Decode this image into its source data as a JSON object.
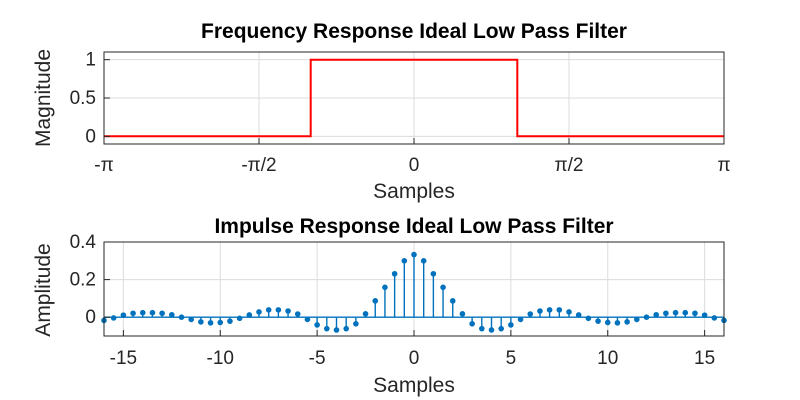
{
  "chart_data": [
    {
      "type": "line",
      "title": "Frequency Response Ideal Low Pass Filter",
      "xlabel": "Samples",
      "ylabel": "Magnitude",
      "xlim": [
        -3.14159,
        3.14159
      ],
      "ylim": [
        -0.1,
        1.1
      ],
      "grid": true,
      "color": "#ff0000",
      "x_ticks": [
        {
          "value": -3.14159,
          "label": "-π"
        },
        {
          "value": -1.5708,
          "label": "-π/2"
        },
        {
          "value": 0,
          "label": "0"
        },
        {
          "value": 1.5708,
          "label": "π/2"
        },
        {
          "value": 3.14159,
          "label": "π"
        }
      ],
      "y_ticks": [
        {
          "value": 0,
          "label": "0"
        },
        {
          "value": 0.5,
          "label": "0.5"
        },
        {
          "value": 1,
          "label": "1"
        }
      ],
      "series": [
        {
          "x": [
            -3.14159,
            -1.0472,
            -1.0472,
            1.0472,
            1.0472,
            3.14159
          ],
          "y": [
            0,
            0,
            1,
            1,
            0,
            0
          ]
        }
      ]
    },
    {
      "type": "scatter",
      "style": "stem",
      "title": "Impulse Response Ideal Low Pass Filter",
      "xlabel": "Samples",
      "ylabel": "Amplitude",
      "xlim": [
        -16,
        16
      ],
      "ylim": [
        -0.1,
        0.4
      ],
      "grid": true,
      "color": "#0072bd",
      "x_ticks": [
        {
          "value": -15,
          "label": "-15"
        },
        {
          "value": -10,
          "label": "-10"
        },
        {
          "value": -5,
          "label": "-5"
        },
        {
          "value": 0,
          "label": "0"
        },
        {
          "value": 5,
          "label": "5"
        },
        {
          "value": 10,
          "label": "10"
        },
        {
          "value": 15,
          "label": "15"
        }
      ],
      "y_ticks": [
        {
          "value": 0,
          "label": "0"
        },
        {
          "value": 0.2,
          "label": "0.2"
        },
        {
          "value": 0.4,
          "label": "0.4"
        }
      ],
      "series": [
        {
          "x": [
            -16,
            -15.5,
            -15,
            -14.5,
            -14,
            -13.5,
            -13,
            -12.5,
            -12,
            -11.5,
            -11,
            -10.5,
            -10,
            -9.5,
            -9,
            -8.5,
            -8,
            -7.5,
            -7,
            -6.5,
            -6,
            -5.5,
            -5,
            -4.5,
            -4,
            -3.5,
            -3,
            -2.5,
            -2,
            -1.5,
            -1,
            -0.5,
            0,
            0.5,
            1,
            1.5,
            2,
            2.5,
            3,
            3.5,
            4,
            4.5,
            5,
            5.5,
            6,
            6.5,
            7,
            7.5,
            8,
            8.5,
            9,
            9.5,
            10,
            10.5,
            11,
            11.5,
            12,
            12.5,
            13,
            13.5,
            14,
            14.5,
            15,
            15.5,
            16
          ],
          "y": [
            -0.017,
            -0.004,
            0.011,
            0.021,
            0.024,
            0.024,
            0.021,
            0.013,
            0,
            -0.012,
            -0.025,
            -0.03,
            -0.028,
            -0.021,
            -0.006,
            0.012,
            0.028,
            0.039,
            0.039,
            0.033,
            0.017,
            -0.012,
            -0.041,
            -0.061,
            -0.068,
            -0.061,
            -0.035,
            0.018,
            0.087,
            0.159,
            0.231,
            0.3,
            0.333,
            0.3,
            0.231,
            0.159,
            0.087,
            0.018,
            -0.035,
            -0.061,
            -0.068,
            -0.061,
            -0.041,
            -0.012,
            0.017,
            0.033,
            0.039,
            0.039,
            0.028,
            0.012,
            -0.006,
            -0.021,
            -0.028,
            -0.03,
            -0.025,
            -0.012,
            0,
            0.013,
            0.021,
            0.024,
            0.024,
            0.021,
            0.011,
            -0.004,
            -0.017
          ]
        }
      ]
    }
  ]
}
